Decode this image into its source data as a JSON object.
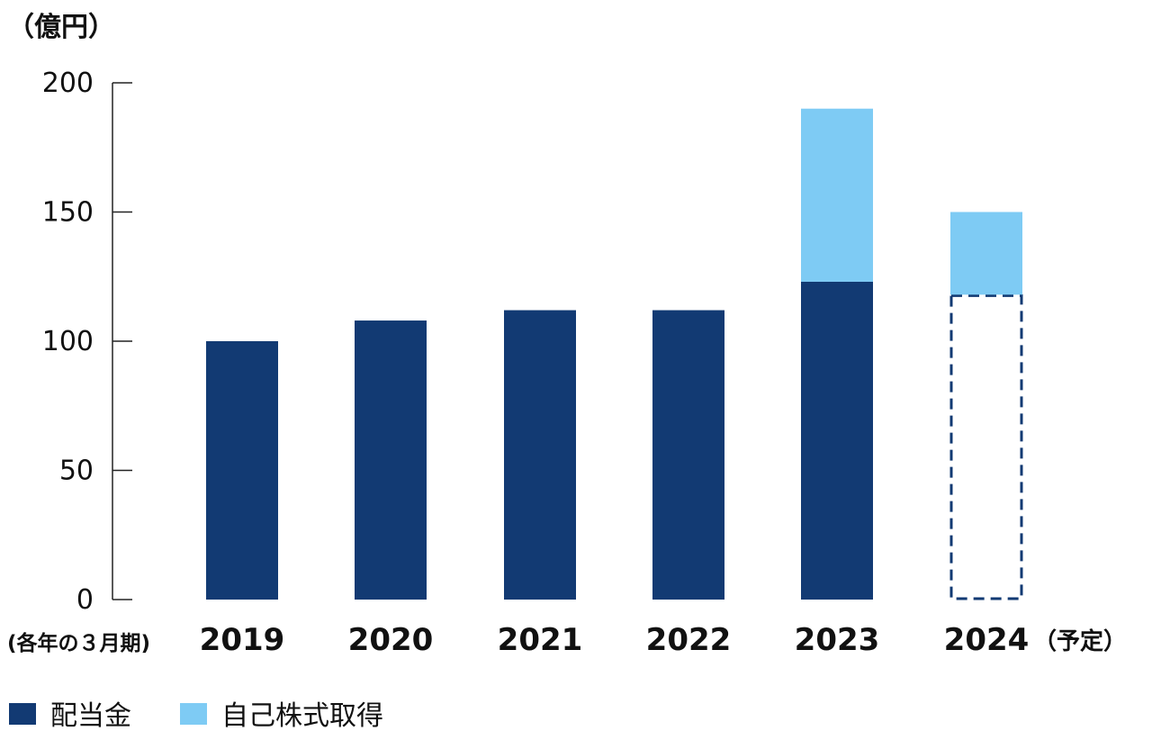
{
  "chart_data": {
    "type": "bar",
    "stacked": true,
    "unit_label": "（億円）",
    "period_label": "(各年の３月期)",
    "categories": [
      "2019",
      "2020",
      "2021",
      "2022",
      "2023",
      "2024"
    ],
    "category_suffixes": [
      "",
      "",
      "",
      "",
      "",
      "（予定）"
    ],
    "series": [
      {
        "name": "配当金",
        "color": "#123a73",
        "values": [
          100,
          108,
          112,
          112,
          123,
          118
        ],
        "planned": [
          false,
          false,
          false,
          false,
          false,
          true
        ]
      },
      {
        "name": "自己株式取得",
        "color": "#7ecbf4",
        "values": [
          0,
          0,
          0,
          0,
          67,
          32
        ]
      }
    ],
    "yticks": [
      "0",
      "50",
      "100",
      "150",
      "200"
    ],
    "ylim": [
      0,
      200
    ],
    "grid": false,
    "legend_position": "bottom-left"
  }
}
